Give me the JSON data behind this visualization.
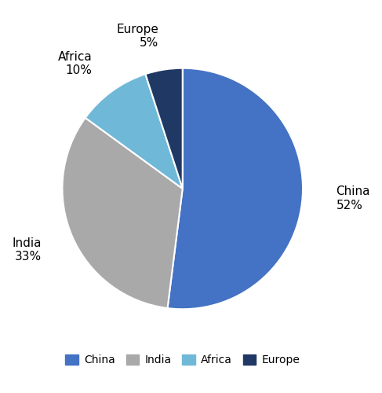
{
  "labels": [
    "China",
    "India",
    "Africa",
    "Europe"
  ],
  "values": [
    52,
    33,
    10,
    5
  ],
  "colors": [
    "#4472C4",
    "#A9A9A9",
    "#70B8D8",
    "#1F3864"
  ],
  "legend_labels": [
    "China",
    "India",
    "Africa",
    "Europe"
  ],
  "startangle": 90,
  "counterclock": false,
  "figsize": [
    4.87,
    5.0
  ],
  "dpi": 100,
  "label_fontsize": 11,
  "legend_fontsize": 10,
  "background_color": "#ffffff"
}
